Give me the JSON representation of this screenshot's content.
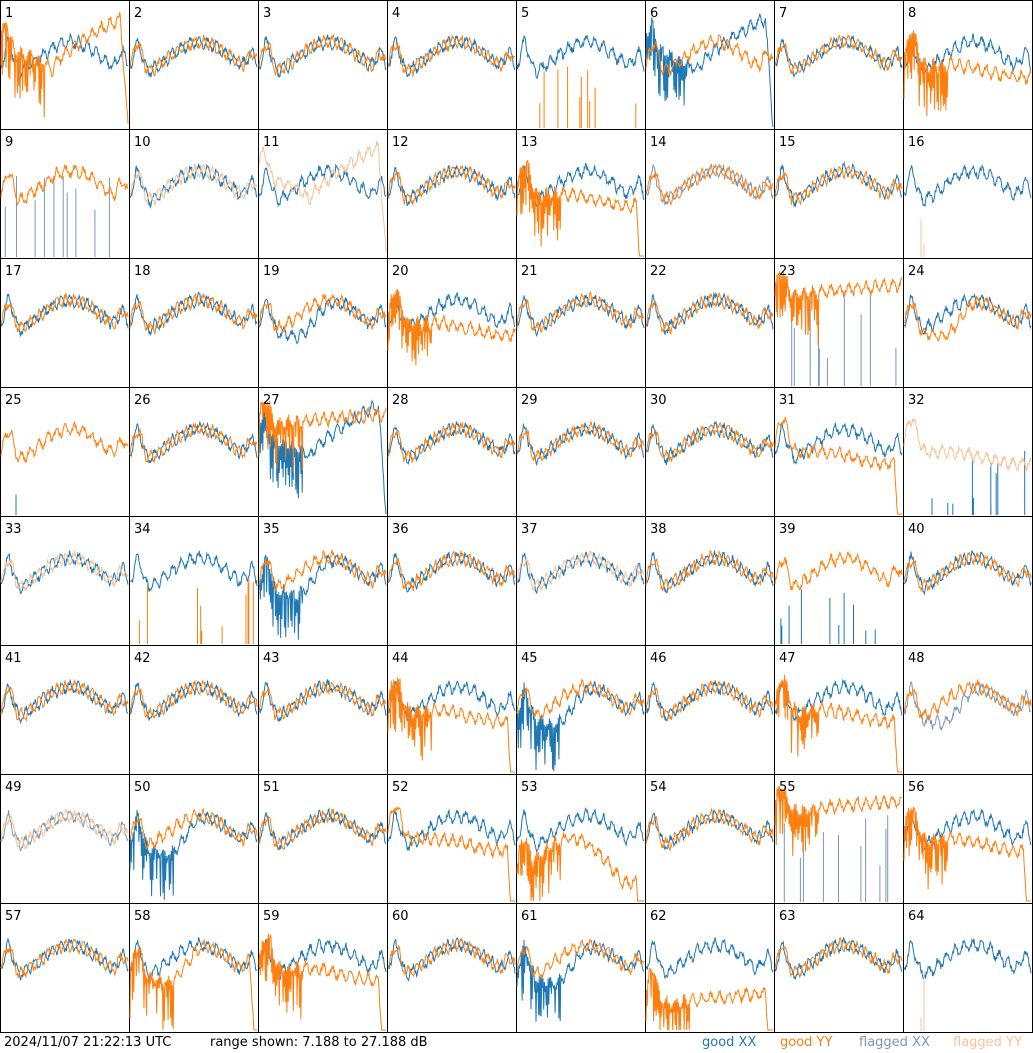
{
  "chart_data": {
    "type": "line",
    "panel_labels": [
      "1",
      "2",
      "3",
      "4",
      "5",
      "6",
      "7",
      "8",
      "9",
      "10",
      "11",
      "12",
      "13",
      "14",
      "15",
      "16",
      "17",
      "18",
      "19",
      "20",
      "21",
      "22",
      "23",
      "24",
      "25",
      "26",
      "27",
      "28",
      "29",
      "30",
      "31",
      "32",
      "33",
      "34",
      "35",
      "36",
      "37",
      "38",
      "39",
      "40",
      "41",
      "42",
      "43",
      "44",
      "45",
      "46",
      "47",
      "48",
      "49",
      "50",
      "51",
      "52",
      "53",
      "54",
      "55",
      "56",
      "57",
      "58",
      "59",
      "60",
      "61",
      "62",
      "63",
      "64"
    ],
    "ylim": [
      7.188,
      27.188
    ],
    "y_unit": "dB",
    "legend_position": "bottom-right",
    "series": [
      {
        "name": "good XX",
        "color": "#1f77b4"
      },
      {
        "name": "good YY",
        "color": "#ff7f0e"
      },
      {
        "name": "flagged XX",
        "color": "#7a98b8"
      },
      {
        "name": "flagged YY",
        "color": "#f8c498"
      }
    ],
    "panels": [
      {
        "xx": "normal",
        "yy": "bowl",
        "yy_drop": true,
        "yy_noise": true
      },
      {
        "xx": "normal",
        "yy": "normal"
      },
      {
        "xx": "normal",
        "yy": "normal"
      },
      {
        "xx": "normal",
        "yy": "normal"
      },
      {
        "xx": "normal",
        "yy": "spikes"
      },
      {
        "xx": "bowl",
        "yy": "normal",
        "xx_drop": true,
        "xx_noise": true
      },
      {
        "xx": "normal",
        "yy": "normal"
      },
      {
        "xx": "normal",
        "yy": "flatter",
        "yy_noise": true
      },
      {
        "xx": "flag_spikes",
        "yy": "normal"
      },
      {
        "xx": "normal",
        "yy": "flag_flat"
      },
      {
        "xx": "normal",
        "yy": "flag_bowl",
        "yy_drop": true
      },
      {
        "xx": "normal",
        "yy": "normal"
      },
      {
        "xx": "normal",
        "yy": "flatter",
        "yy_drop": true,
        "yy_noise": true
      },
      {
        "xx": "flag_normal",
        "yy": "normal"
      },
      {
        "xx": "normal",
        "yy": "normal"
      },
      {
        "xx": "normal",
        "yy": "flag_spike"
      },
      {
        "xx": "normal",
        "yy": "normal"
      },
      {
        "xx": "normal",
        "yy": "normal"
      },
      {
        "xx": "dip",
        "yy": "normal"
      },
      {
        "xx": "normal",
        "yy": "flatter",
        "yy_noise": true
      },
      {
        "xx": "normal",
        "yy": "normal"
      },
      {
        "xx": "normal",
        "yy": "normal"
      },
      {
        "xx": "flag_spikes",
        "yy": "high",
        "yy_noise": true
      },
      {
        "xx": "normal",
        "yy": "dip"
      },
      {
        "xx": "spike1",
        "yy": "normal"
      },
      {
        "xx": "normal",
        "yy": "normal"
      },
      {
        "xx": "bowl",
        "yy": "high",
        "xx_drop": true,
        "xx_noise": true,
        "yy_noise": true
      },
      {
        "xx": "normal",
        "yy": "normal"
      },
      {
        "xx": "normal",
        "yy": "normal"
      },
      {
        "xx": "normal",
        "yy": "normal"
      },
      {
        "xx": "normal",
        "yy": "flatter",
        "yy_drop": true
      },
      {
        "xx": "spikes",
        "yy": "flag_noisy"
      },
      {
        "xx": "normal",
        "yy": "flag_normal"
      },
      {
        "xx": "normal",
        "yy": "spikes"
      },
      {
        "xx": "dip",
        "yy": "normal",
        "xx_noise": true
      },
      {
        "xx": "normal",
        "yy": "normal"
      },
      {
        "xx": "normal",
        "yy": "flag_normal"
      },
      {
        "xx": "normal",
        "yy": "normal"
      },
      {
        "xx": "spikes",
        "yy": "normal"
      },
      {
        "xx": "normal",
        "yy": "normal"
      },
      {
        "xx": "normal",
        "yy": "normal"
      },
      {
        "xx": "normal",
        "yy": "normal"
      },
      {
        "xx": "normal",
        "yy": "normal"
      },
      {
        "xx": "normal",
        "yy": "flatter",
        "yy_drop": true,
        "yy_noise": true
      },
      {
        "xx": "dip",
        "yy": "normal",
        "xx_noise": true
      },
      {
        "xx": "normal",
        "yy": "normal"
      },
      {
        "xx": "normal",
        "yy": "flatter",
        "yy_drop": true,
        "yy_noise": true
      },
      {
        "xx": "flag_dip",
        "yy": "normal"
      },
      {
        "xx": "flag_normal",
        "yy": "flag_normal"
      },
      {
        "xx": "dip",
        "yy": "normal",
        "xx_noise": true
      },
      {
        "xx": "normal",
        "yy": "normal"
      },
      {
        "xx": "normal",
        "yy": "flatter",
        "yy_drop": true
      },
      {
        "xx": "normal",
        "yy": "deep_bowl",
        "yy_drop": true,
        "yy_noise": true
      },
      {
        "xx": "normal",
        "yy": "normal"
      },
      {
        "xx": "flag_spikes",
        "yy": "high",
        "yy_noise": true
      },
      {
        "xx": "normal",
        "yy": "flatter",
        "yy_drop": true,
        "yy_noise": true
      },
      {
        "xx": "normal",
        "yy": "normal"
      },
      {
        "xx": "normal",
        "yy": "dip",
        "yy_drop": true,
        "yy_noise": true
      },
      {
        "xx": "normal",
        "yy": "flatter",
        "yy_drop": true,
        "yy_noise": true
      },
      {
        "xx": "normal",
        "yy": "normal"
      },
      {
        "xx": "dip",
        "yy": "normal",
        "xx_noise": true
      },
      {
        "xx": "normal",
        "yy": "low",
        "yy_drop": true,
        "yy_noise": true
      },
      {
        "xx": "normal",
        "yy": "normal"
      },
      {
        "xx": "normal",
        "yy": "flag_spike"
      }
    ]
  },
  "footer": {
    "timestamp": "2024/11/07 21:22:13 UTC",
    "range_text": "range shown: 7.188 to 27.188 dB",
    "legend": [
      {
        "label": "good XX",
        "color": "#1f77b4"
      },
      {
        "label": "good YY",
        "color": "#ff7f0e"
      },
      {
        "label": "flagged XX",
        "color": "#7a98b8"
      },
      {
        "label": "flagged YY",
        "color": "#f8c498"
      }
    ]
  }
}
